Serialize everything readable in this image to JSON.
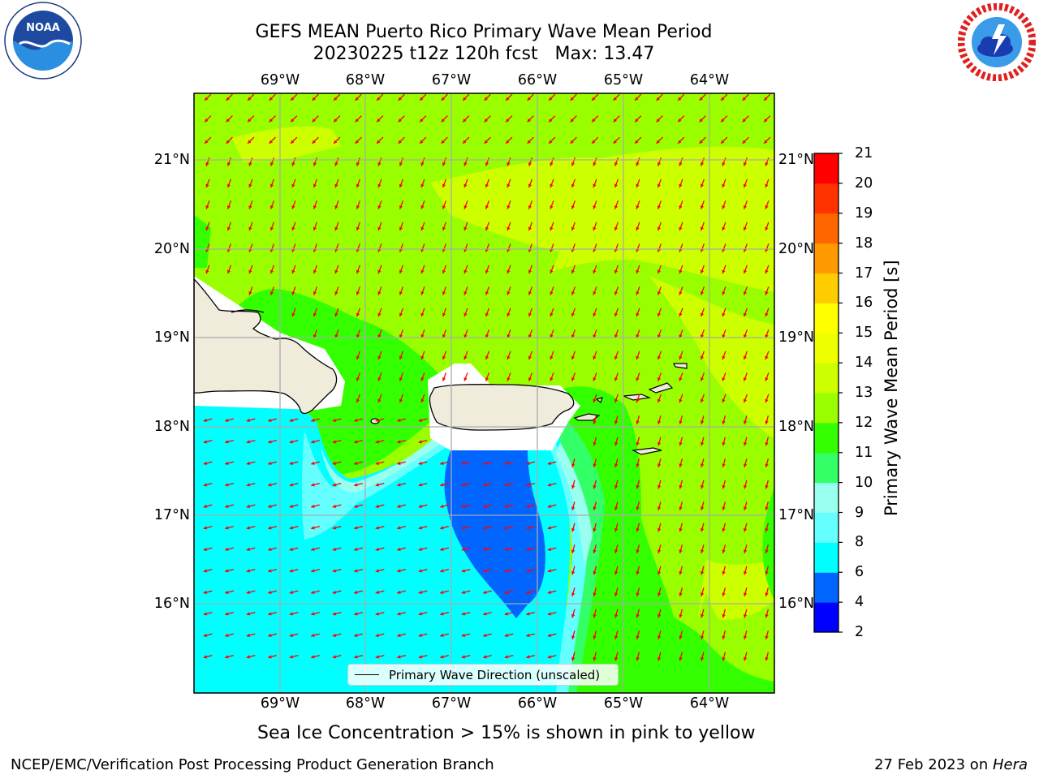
{
  "header": {
    "title_line1": "GEFS MEAN Puerto Rico Primary Wave Mean Period",
    "title_line2": "20230225 t12z 120h fcst   Max: 13.47"
  },
  "logos": {
    "left": {
      "name": "noaa-logo",
      "text": "NOAA",
      "ring_text": "NATIONAL OCEANIC AND ATMOSPHERIC ADMINISTRATION · U.S. DEPARTMENT OF COMMERCE"
    },
    "right": {
      "name": "nws-logo",
      "ring_text": "NATIONAL WEATHER SERVICE"
    }
  },
  "map": {
    "lon_labels": [
      "69°W",
      "68°W",
      "67°W",
      "66°W",
      "65°W",
      "64°W"
    ],
    "lat_labels": [
      "21°N",
      "20°N",
      "19°N",
      "18°N",
      "17°N",
      "16°N"
    ],
    "legend_label": "Primary Wave Direction (unscaled)",
    "arrow_color": "#ff0000",
    "land_color": "#efecdc",
    "coast_color": "#000000"
  },
  "colorbar": {
    "label": "Primary Wave Mean Period [s]",
    "ticks": [
      "2",
      "4",
      "6",
      "8",
      "9",
      "10",
      "11",
      "12",
      "13",
      "14",
      "15",
      "16",
      "17",
      "18",
      "19",
      "20",
      "21"
    ],
    "levels": [
      {
        "from": 2,
        "to": 4,
        "color": "#0000ff"
      },
      {
        "from": 4,
        "to": 6,
        "color": "#0066ff"
      },
      {
        "from": 6,
        "to": 8,
        "color": "#00ffff"
      },
      {
        "from": 8,
        "to": 9,
        "color": "#66ffff"
      },
      {
        "from": 9,
        "to": 10,
        "color": "#99ffee"
      },
      {
        "from": 10,
        "to": 11,
        "color": "#33ff66"
      },
      {
        "from": 11,
        "to": 12,
        "color": "#33ff00"
      },
      {
        "from": 12,
        "to": 13,
        "color": "#99ff00"
      },
      {
        "from": 13,
        "to": 14,
        "color": "#ccff00"
      },
      {
        "from": 14,
        "to": 15,
        "color": "#eeff00"
      },
      {
        "from": 15,
        "to": 16,
        "color": "#ffff00"
      },
      {
        "from": 16,
        "to": 17,
        "color": "#ffcc00"
      },
      {
        "from": 17,
        "to": 18,
        "color": "#ff9900"
      },
      {
        "from": 18,
        "to": 19,
        "color": "#ff6600"
      },
      {
        "from": 19,
        "to": 20,
        "color": "#ff3300"
      },
      {
        "from": 20,
        "to": 21,
        "color": "#ff0000"
      }
    ]
  },
  "notes": {
    "sea_ice": "Sea Ice Concentration > 15% is shown in pink to yellow"
  },
  "footer": {
    "left": "NCEP/EMC/Verification Post Processing Product Generation Branch",
    "right_prefix": "27 Feb 2023 on ",
    "right_machine": "Hera"
  }
}
